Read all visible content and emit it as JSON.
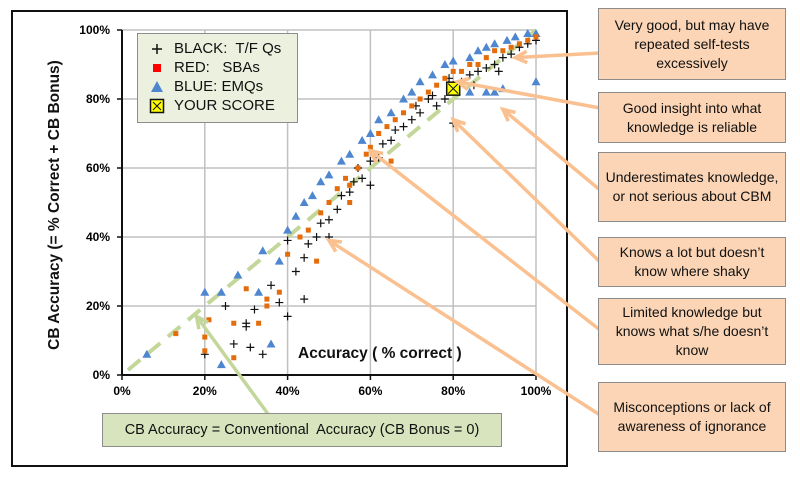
{
  "chart_data": {
    "type": "scatter",
    "xlabel": "Accuracy ( % correct )",
    "ylabel": "CB Accuracy (=  % Correct + CB Bonus)",
    "xlim": [
      0,
      100
    ],
    "ylim": [
      0,
      100
    ],
    "x_ticks": [
      "0%",
      "20%",
      "40%",
      "60%",
      "80%",
      "100%"
    ],
    "y_ticks": [
      "0%",
      "20%",
      "40%",
      "60%",
      "80%",
      "100%"
    ],
    "grid": true,
    "legend_position": "top-left",
    "legend": [
      {
        "symbol": "plus",
        "label": "BLACK:  T/F Qs",
        "color": "#111111"
      },
      {
        "symbol": "square",
        "label": "RED:   SBAs",
        "color": "#ff0000"
      },
      {
        "symbol": "triangle",
        "label": "BLUE: EMQs",
        "color": "#4f86d0"
      },
      {
        "symbol": "crossed-square",
        "label": "YOUR SCORE",
        "color": "#ffff00"
      }
    ],
    "series": [
      {
        "name": "BLACK:  T/F Qs",
        "marker": "plus",
        "color": "#111111",
        "points": [
          [
            20,
            6
          ],
          [
            25,
            20
          ],
          [
            27,
            9
          ],
          [
            30,
            15
          ],
          [
            30,
            14
          ],
          [
            31,
            8
          ],
          [
            32,
            19
          ],
          [
            34,
            6
          ],
          [
            36,
            26
          ],
          [
            38,
            21
          ],
          [
            40,
            17
          ],
          [
            40,
            39
          ],
          [
            42,
            30
          ],
          [
            44,
            34
          ],
          [
            45,
            38
          ],
          [
            47,
            40
          ],
          [
            48,
            44
          ],
          [
            50,
            45
          ],
          [
            52,
            48
          ],
          [
            53,
            52
          ],
          [
            55,
            53
          ],
          [
            56,
            56
          ],
          [
            57,
            60
          ],
          [
            58,
            57
          ],
          [
            60,
            62
          ],
          [
            62,
            63
          ],
          [
            63,
            67
          ],
          [
            65,
            68
          ],
          [
            66,
            71
          ],
          [
            68,
            72
          ],
          [
            70,
            74
          ],
          [
            71,
            78
          ],
          [
            72,
            76
          ],
          [
            74,
            80
          ],
          [
            75,
            81
          ],
          [
            76,
            78
          ],
          [
            78,
            80
          ],
          [
            79,
            86
          ],
          [
            80,
            84
          ],
          [
            80,
            73
          ],
          [
            82,
            85
          ],
          [
            84,
            87
          ],
          [
            85,
            84
          ],
          [
            86,
            88
          ],
          [
            88,
            89
          ],
          [
            90,
            90
          ],
          [
            91,
            88
          ],
          [
            92,
            92
          ],
          [
            94,
            93
          ],
          [
            96,
            95
          ],
          [
            98,
            96
          ],
          [
            100,
            97
          ],
          [
            44,
            22
          ],
          [
            50,
            40
          ],
          [
            60,
            55
          ]
        ]
      },
      {
        "name": "RED:   SBAs",
        "marker": "square",
        "color": "#e46c0a",
        "points": [
          [
            13,
            12
          ],
          [
            20,
            11
          ],
          [
            20,
            7
          ],
          [
            21,
            16
          ],
          [
            27,
            15
          ],
          [
            27,
            5
          ],
          [
            30,
            25
          ],
          [
            33,
            15
          ],
          [
            35,
            20
          ],
          [
            35,
            22
          ],
          [
            38,
            24
          ],
          [
            40,
            35
          ],
          [
            43,
            40
          ],
          [
            45,
            42
          ],
          [
            48,
            47
          ],
          [
            50,
            50
          ],
          [
            52,
            54
          ],
          [
            54,
            57
          ],
          [
            55,
            55
          ],
          [
            57,
            60
          ],
          [
            59,
            64
          ],
          [
            60,
            66
          ],
          [
            62,
            70
          ],
          [
            64,
            72
          ],
          [
            66,
            74
          ],
          [
            68,
            76
          ],
          [
            70,
            78
          ],
          [
            72,
            80
          ],
          [
            74,
            82
          ],
          [
            76,
            84
          ],
          [
            78,
            86
          ],
          [
            80,
            88
          ],
          [
            82,
            88
          ],
          [
            84,
            90
          ],
          [
            86,
            90
          ],
          [
            88,
            92
          ],
          [
            90,
            94
          ],
          [
            92,
            94
          ],
          [
            94,
            95
          ],
          [
            96,
            96
          ],
          [
            98,
            97
          ],
          [
            100,
            98
          ],
          [
            47,
            33
          ],
          [
            55,
            50
          ],
          [
            65,
            62
          ]
        ]
      },
      {
        "name": "BLUE: EMQs",
        "marker": "triangle",
        "color": "#4f86d0",
        "points": [
          [
            6,
            6
          ],
          [
            20,
            24
          ],
          [
            24,
            3
          ],
          [
            24,
            24
          ],
          [
            28,
            29
          ],
          [
            33,
            24
          ],
          [
            34,
            36
          ],
          [
            36,
            9
          ],
          [
            38,
            33
          ],
          [
            40,
            42
          ],
          [
            42,
            46
          ],
          [
            44,
            50
          ],
          [
            46,
            52
          ],
          [
            48,
            56
          ],
          [
            50,
            58
          ],
          [
            53,
            62
          ],
          [
            55,
            64
          ],
          [
            58,
            68
          ],
          [
            60,
            70
          ],
          [
            62,
            74
          ],
          [
            65,
            76
          ],
          [
            68,
            80
          ],
          [
            70,
            82
          ],
          [
            72,
            85
          ],
          [
            75,
            87
          ],
          [
            78,
            90
          ],
          [
            80,
            91
          ],
          [
            84,
            92
          ],
          [
            86,
            94
          ],
          [
            88,
            95
          ],
          [
            90,
            96
          ],
          [
            93,
            97
          ],
          [
            95,
            98
          ],
          [
            98,
            99
          ],
          [
            100,
            99
          ],
          [
            88,
            82
          ],
          [
            90,
            82
          ],
          [
            92,
            83
          ],
          [
            100,
            85
          ],
          [
            84,
            82
          ]
        ]
      }
    ],
    "your_score": {
      "label": "YOUR SCORE",
      "x": 80,
      "y": 83
    },
    "reference_line": {
      "label": "CB Accuracy = Conventional  Accuracy (CB Bonus = 0)",
      "from": [
        0,
        0
      ],
      "to": [
        100,
        100
      ],
      "color": "#c4d79b"
    },
    "annotations": [
      {
        "text": "Very good, but may have repeated  self-tests excessively",
        "points_to": [
          95,
          92
        ]
      },
      {
        "text": "Good insight into what knowledge  is reliable",
        "points_to": [
          81,
          85
        ]
      },
      {
        "text": "Underestimates knowledge, or not serious about CBM",
        "points_to": [
          92,
          77
        ]
      },
      {
        "text": "Knows a lot but doesn’t know where shaky",
        "points_to": [
          80,
          74
        ]
      },
      {
        "text": "Limited knowledge but knows what s/he doesn’t know",
        "points_to": [
          60,
          65
        ]
      },
      {
        "text": "Misconceptions or lack of awareness of ignorance",
        "points_to": [
          50,
          39
        ]
      }
    ],
    "callout_color": "#fbd5b5",
    "arrow_color": "#fac090"
  }
}
